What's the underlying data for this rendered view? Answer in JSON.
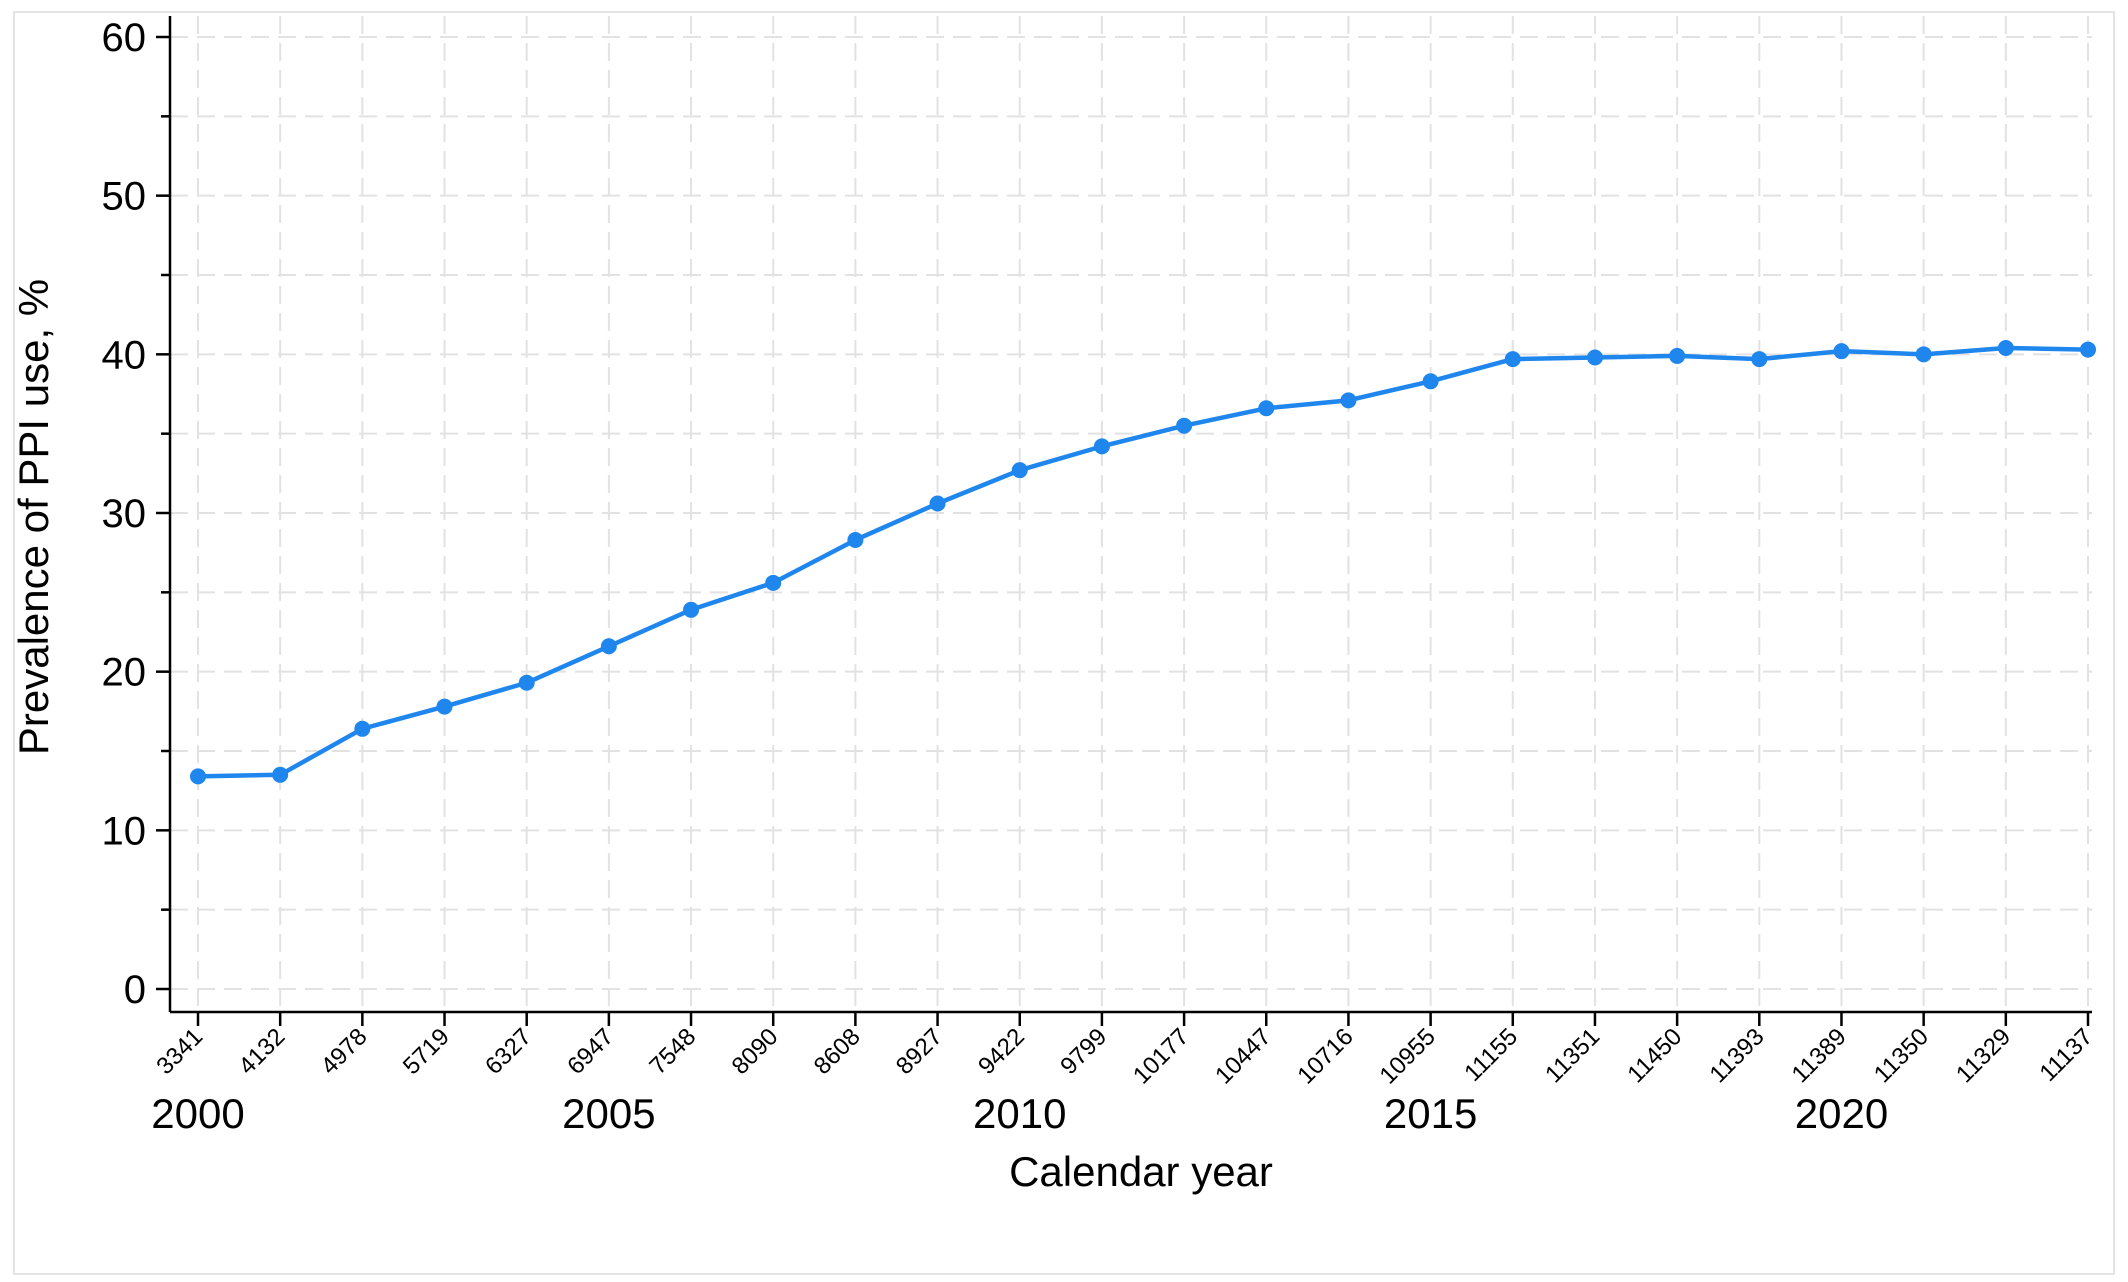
{
  "chart_data": {
    "type": "line",
    "title": "",
    "xlabel": "Calendar year",
    "ylabel": "Prevalence of PPI use, %",
    "xlim": [
      2000,
      2023
    ],
    "ylim": [
      0,
      60
    ],
    "yticks": [
      0,
      10,
      20,
      30,
      40,
      50,
      60
    ],
    "xmajor_ticks": [
      2000,
      2005,
      2010,
      2015,
      2020
    ],
    "grid": true,
    "legend": "none",
    "line_color": "#1f86ee",
    "x": [
      2000,
      2001,
      2002,
      2003,
      2004,
      2005,
      2006,
      2007,
      2008,
      2009,
      2010,
      2011,
      2012,
      2013,
      2014,
      2015,
      2016,
      2017,
      2018,
      2019,
      2020,
      2021,
      2022,
      2023
    ],
    "y": [
      13.4,
      13.5,
      16.4,
      17.8,
      19.3,
      21.6,
      23.9,
      25.6,
      28.3,
      30.6,
      32.7,
      34.2,
      35.5,
      36.6,
      37.1,
      38.3,
      39.7,
      39.8,
      39.9,
      39.7,
      40.2,
      40.0,
      40.4,
      40.3
    ],
    "n_labels": [
      "3341",
      "4132",
      "4978",
      "5719",
      "6327",
      "6947",
      "7548",
      "8090",
      "8608",
      "8927",
      "9422",
      "9799",
      "10177",
      "10447",
      "10716",
      "10955",
      "11155",
      "11351",
      "11450",
      "11393",
      "11389",
      "11350",
      "11329",
      "11137"
    ]
  }
}
